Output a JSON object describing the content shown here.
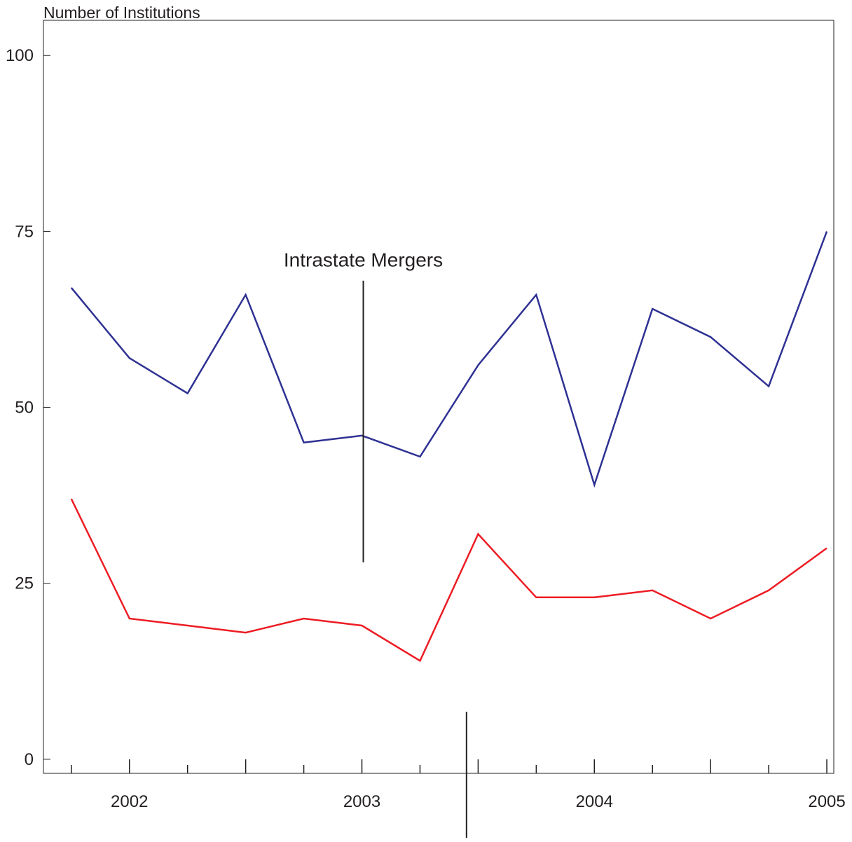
{
  "chart_data": {
    "type": "line",
    "ylabel": "Number of Institutions",
    "xlabel": "",
    "title": "",
    "ylim": [
      -2,
      105
    ],
    "y_ticks": [
      0,
      25,
      50,
      75,
      100
    ],
    "x_range": [
      2001.63,
      2005.03
    ],
    "x_ticks": [
      2002,
      2003,
      2004,
      2005
    ],
    "x_tick_labels": [
      "2002",
      "2003",
      "2004",
      "2005"
    ],
    "x_minor_ticks": [
      2001.75,
      2002.25,
      2002.5,
      2002.75,
      2003.25,
      2003.5,
      2003.75,
      2004.25,
      2004.5,
      2004.75
    ],
    "x_major_tick_marks": [
      2002.5,
      2003.5,
      2004.5
    ],
    "x": [
      2001.75,
      2002.0,
      2002.25,
      2002.5,
      2002.75,
      2003.0,
      2003.25,
      2003.5,
      2003.75,
      2004.0,
      2004.25,
      2004.5,
      2004.75,
      2005.0
    ],
    "series": [
      {
        "color": "#2e3192",
        "values": [
          67,
          57,
          52,
          66,
          45,
          46,
          43,
          56,
          66,
          39,
          64,
          60,
          53,
          75
        ]
      },
      {
        "color": "#ed1c24",
        "values": [
          37,
          20,
          19,
          18,
          20,
          19,
          14,
          32,
          23,
          23,
          24,
          20,
          24,
          30
        ]
      }
    ],
    "annotations": [
      {
        "text": "Intrastate Mergers",
        "x": 2003.0,
        "line_from": 28,
        "line_to": 68
      }
    ],
    "reference_line": {
      "x": 2003.45
    },
    "grid": false,
    "legend": "none"
  }
}
